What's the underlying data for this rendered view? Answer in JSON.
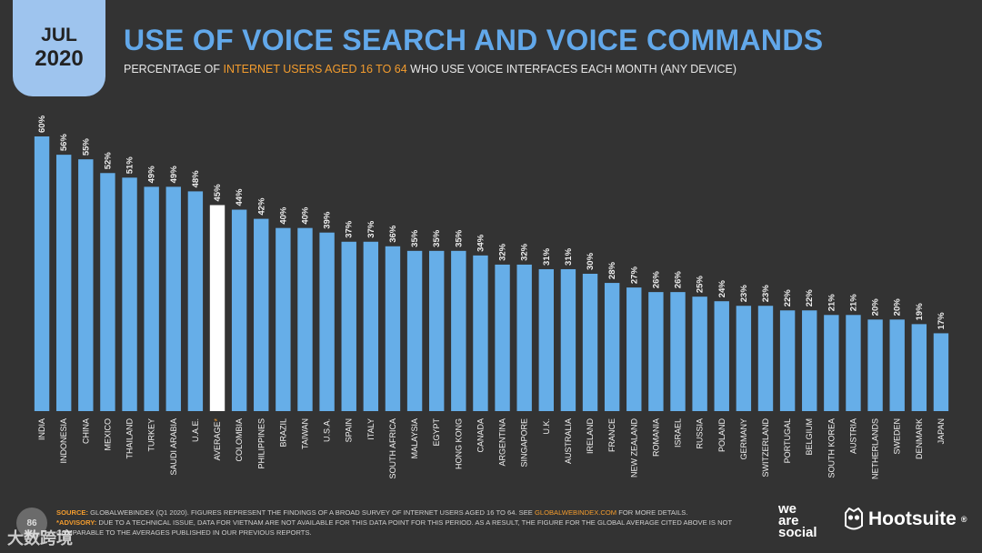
{
  "header": {
    "month": "JUL",
    "year": "2020",
    "title": "USE OF VOICE SEARCH AND VOICE COMMANDS",
    "subtitle_pre": "PERCENTAGE OF ",
    "subtitle_highlight": "INTERNET USERS AGED 16 TO 64",
    "subtitle_post": " WHO USE VOICE INTERFACES EACH MONTH (ANY DEVICE)"
  },
  "colors": {
    "background": "#333333",
    "bar": "#66aee8",
    "average_bar": "#ffffff",
    "title": "#62a8ea",
    "accent": "#f39c2e"
  },
  "chart_data": {
    "type": "bar",
    "title": "USE OF VOICE SEARCH AND VOICE COMMANDS",
    "subtitle": "PERCENTAGE OF INTERNET USERS AGED 16 TO 64 WHO USE VOICE INTERFACES EACH MONTH (ANY DEVICE)",
    "xlabel": "",
    "ylabel": "",
    "ylim": [
      0,
      60
    ],
    "value_suffix": "%",
    "highlight_category": "AVERAGE",
    "highlight_marker": "*",
    "categories": [
      "INDIA",
      "INDONESIA",
      "CHINA",
      "MEXICO",
      "THAILAND",
      "TURKEY",
      "SAUDI ARABIA",
      "U.A.E.",
      "AVERAGE",
      "COLOMBIA",
      "PHILIPPINES",
      "BRAZIL",
      "TAIWAN",
      "U.S.A.",
      "SPAIN",
      "ITALY",
      "SOUTH AFRICA",
      "MALAYSIA",
      "EGYPT",
      "HONG KONG",
      "CANADA",
      "ARGENTINA",
      "SINGAPORE",
      "U.K.",
      "AUSTRALIA",
      "IRELAND",
      "FRANCE",
      "NEW ZEALAND",
      "ROMANIA",
      "ISRAEL",
      "RUSSIA",
      "POLAND",
      "GERMANY",
      "SWITZERLAND",
      "PORTUGAL",
      "BELGIUM",
      "SOUTH KOREA",
      "AUSTRIA",
      "NETHERLANDS",
      "SWEDEN",
      "DENMARK",
      "JAPAN"
    ],
    "values": [
      60,
      56,
      55,
      52,
      51,
      49,
      49,
      48,
      45,
      44,
      42,
      40,
      40,
      39,
      37,
      37,
      36,
      35,
      35,
      35,
      34,
      32,
      32,
      31,
      31,
      30,
      28,
      27,
      26,
      26,
      25,
      24,
      23,
      23,
      22,
      22,
      21,
      21,
      20,
      20,
      19,
      17
    ]
  },
  "footer": {
    "page_number": "86",
    "source_label": "SOURCE:",
    "source_text": " GLOBALWEBINDEX (Q1 2020). FIGURES REPRESENT THE FINDINGS OF A BROAD SURVEY OF INTERNET USERS AGED 16 TO 64. SEE ",
    "source_link": "GLOBALWEBINDEX.COM",
    "source_tail": " FOR MORE DETAILS.",
    "advisory_label": "*ADVISORY:",
    "advisory_text": " DUE TO A TECHNICAL ISSUE, DATA FOR VIETNAM ARE NOT AVAILABLE FOR THIS DATA POINT FOR THIS PERIOD. AS A RESULT, THE FIGURE FOR THE GLOBAL AVERAGE CITED ABOVE IS NOT COMPARABLE TO THE AVERAGES PUBLISHED IN OUR PREVIOUS REPORTS."
  },
  "logos": {
    "we_are_social_line1": "we",
    "we_are_social_line2": "are",
    "we_are_social_line3": "social",
    "hootsuite": "Hootsuite",
    "hootsuite_mark": "®"
  },
  "watermark": "大数跨境"
}
